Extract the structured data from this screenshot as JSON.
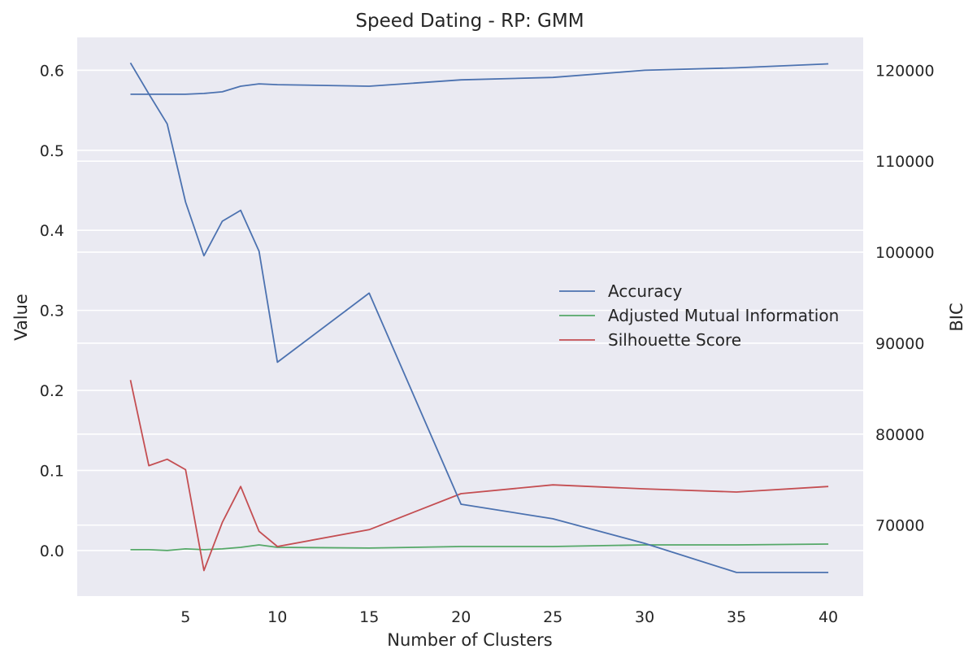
{
  "chart_data": {
    "type": "line",
    "title": "Speed Dating - RP: GMM",
    "xlabel": "Number of Clusters",
    "ylabel": "Value",
    "y2label": "BIC",
    "xlim": [
      -0.9,
      41.9
    ],
    "ylim": [
      -0.057,
      0.641
    ],
    "y2lim": [
      62200,
      123600
    ],
    "xticks": [
      5,
      10,
      15,
      20,
      25,
      30,
      35,
      40
    ],
    "yticks": [
      0.0,
      0.1,
      0.2,
      0.3,
      0.4,
      0.5,
      0.6
    ],
    "ytick_labels": [
      "0.0",
      "0.1",
      "0.2",
      "0.3",
      "0.4",
      "0.5",
      "0.6"
    ],
    "y2ticks": [
      70000,
      80000,
      90000,
      100000,
      110000,
      120000
    ],
    "grid": true,
    "legend_position": "center-right",
    "series": [
      {
        "name": "Accuracy",
        "axis": "left",
        "color": "#4c72b0",
        "x": [
          2,
          3,
          4,
          5,
          6,
          7,
          8,
          9,
          10,
          15,
          20,
          25,
          30,
          35,
          40
        ],
        "values": [
          0.57,
          0.57,
          0.57,
          0.57,
          0.571,
          0.573,
          0.58,
          0.583,
          0.582,
          0.58,
          0.588,
          0.591,
          0.6,
          0.603,
          0.608
        ]
      },
      {
        "name": "Adjusted Mutual Information",
        "axis": "left",
        "color": "#55a868",
        "x": [
          2,
          3,
          4,
          5,
          6,
          7,
          8,
          9,
          10,
          15,
          20,
          25,
          30,
          35,
          40
        ],
        "values": [
          0.001,
          0.001,
          0.0,
          0.002,
          0.001,
          0.002,
          0.004,
          0.007,
          0.004,
          0.003,
          0.005,
          0.005,
          0.007,
          0.007,
          0.008
        ]
      },
      {
        "name": "Silhouette Score",
        "axis": "left",
        "color": "#c44e52",
        "x": [
          2,
          3,
          4,
          5,
          6,
          7,
          8,
          9,
          10,
          15,
          20,
          25,
          30,
          35,
          40
        ],
        "values": [
          0.213,
          0.106,
          0.114,
          0.101,
          -0.025,
          0.035,
          0.08,
          0.024,
          0.005,
          0.026,
          0.071,
          0.082,
          0.077,
          0.073,
          0.08
        ]
      },
      {
        "name": "BIC",
        "axis": "right",
        "color": "#4c72b0",
        "x": [
          2,
          3,
          4,
          5,
          6,
          7,
          8,
          9,
          10,
          15,
          20,
          25,
          30,
          35,
          40
        ],
        "values": [
          120800,
          117400,
          114100,
          105500,
          99600,
          103400,
          104600,
          100100,
          87900,
          95500,
          72300,
          70700,
          68000,
          64800,
          64800
        ]
      }
    ]
  }
}
